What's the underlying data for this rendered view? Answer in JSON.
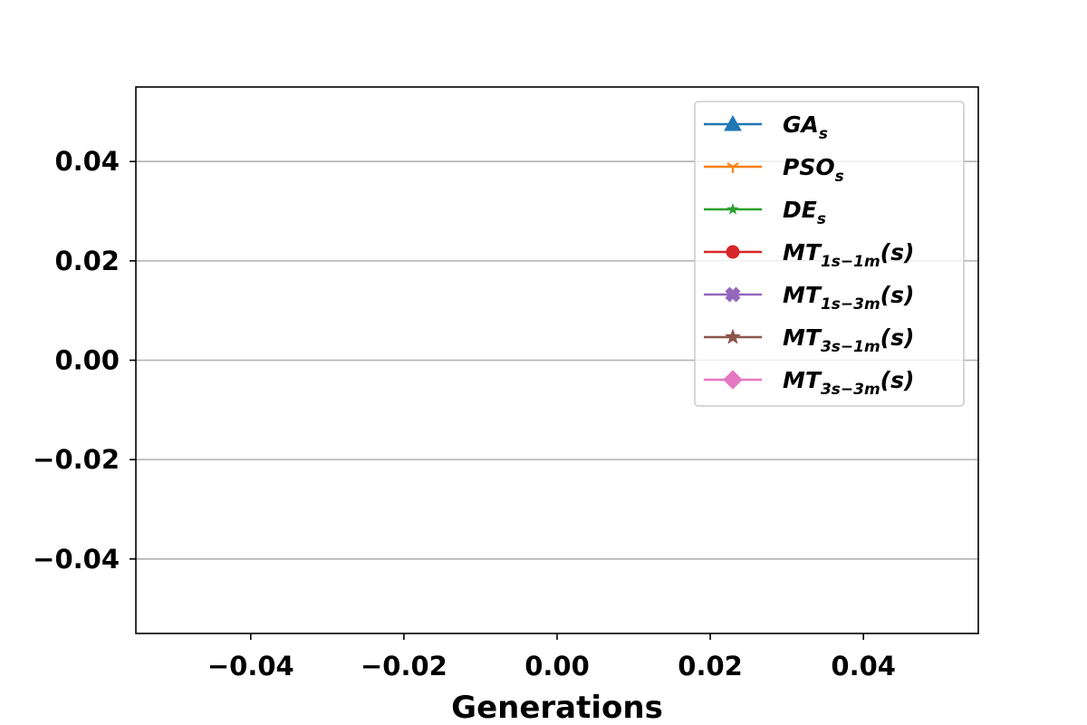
{
  "chart_data": {
    "type": "line",
    "title": "",
    "xlabel": "Generations",
    "ylabel": "",
    "xlim": [
      -0.055,
      0.055
    ],
    "ylim": [
      -0.055,
      0.055
    ],
    "xticks": [
      -0.04,
      -0.02,
      0.0,
      0.02,
      0.04
    ],
    "yticks": [
      -0.04,
      -0.02,
      0.0,
      0.02,
      0.04
    ],
    "xtick_labels": [
      "−0.04",
      "−0.02",
      "0.00",
      "0.02",
      "0.04"
    ],
    "ytick_labels": [
      "−0.04",
      "−0.02",
      "0.00",
      "0.02",
      "0.04"
    ],
    "grid": "y",
    "legend_position": "top-right",
    "series": [
      {
        "name_main": "GA",
        "name_sub": "s",
        "name_suffix": "",
        "color": "#1f77b4",
        "marker": "triangle-up",
        "x": [],
        "y": []
      },
      {
        "name_main": "PSO",
        "name_sub": "s",
        "name_suffix": "",
        "color": "#ff7f0e",
        "marker": "tri-down",
        "x": [],
        "y": []
      },
      {
        "name_main": "DE",
        "name_sub": "s",
        "name_suffix": "",
        "color": "#2ca02c",
        "marker": "star-small",
        "x": [],
        "y": []
      },
      {
        "name_main": "MT",
        "name_sub": "1s−1m",
        "name_suffix": "(s)",
        "color": "#d62728",
        "marker": "circle",
        "x": [],
        "y": []
      },
      {
        "name_main": "MT",
        "name_sub": "1s−3m",
        "name_suffix": "(s)",
        "color": "#9467bd",
        "marker": "plus-filled",
        "x": [],
        "y": []
      },
      {
        "name_main": "MT",
        "name_sub": "3s−1m",
        "name_suffix": "(s)",
        "color": "#8c564b",
        "marker": "star",
        "x": [],
        "y": []
      },
      {
        "name_main": "MT",
        "name_sub": "3s−3m",
        "name_suffix": "(s)",
        "color": "#e377c2",
        "marker": "diamond",
        "x": [],
        "y": []
      }
    ]
  }
}
